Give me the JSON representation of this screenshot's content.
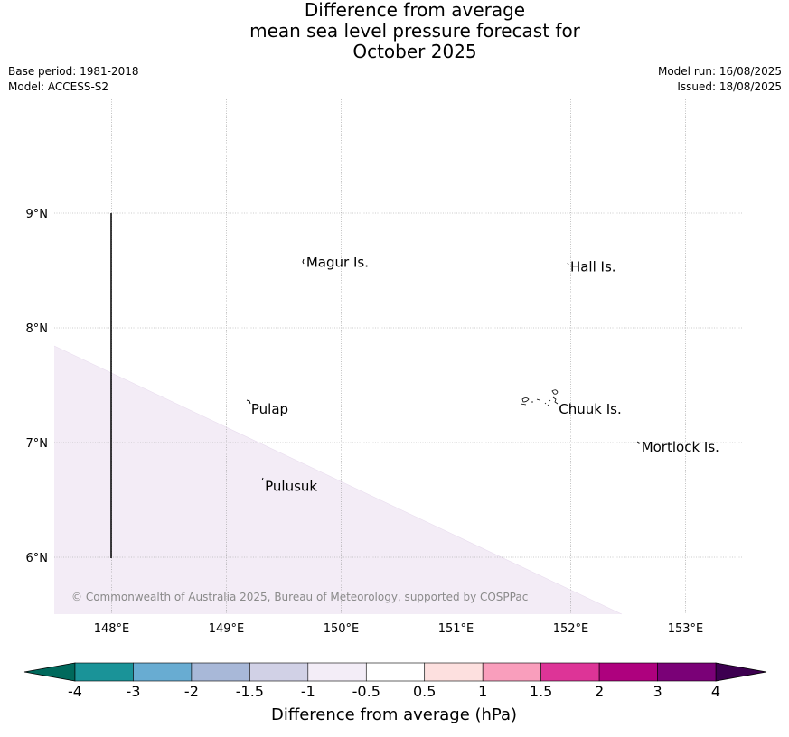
{
  "title": {
    "line1": "Difference from average",
    "line2": "mean sea level pressure forecast for",
    "line3": "October 2025"
  },
  "meta": {
    "base_period": "Base period: 1981-2018",
    "model": "Model: ACCESS-S2",
    "model_run": "Model run: 16/08/2025",
    "issued": "Issued: 18/08/2025"
  },
  "map": {
    "lon_ticks": [
      "148°E",
      "149°E",
      "150°E",
      "151°E",
      "152°E",
      "153°E"
    ],
    "lat_ticks": [
      "9°N",
      "8°N",
      "7°N",
      "6°N"
    ],
    "lon_values": [
      148,
      149,
      150,
      151,
      152,
      153
    ],
    "lat_values": [
      9,
      8,
      7,
      6
    ],
    "lon_range": [
      147.5,
      153.5
    ],
    "lat_range": [
      5.5,
      10.0
    ],
    "places": [
      {
        "name": "Magur Is.",
        "lon": 149.68,
        "lat": 8.57
      },
      {
        "name": "Hall Is.",
        "lon": 151.98,
        "lat": 8.53
      },
      {
        "name": "Pulap",
        "lon": 149.2,
        "lat": 7.29
      },
      {
        "name": "Chuuk Is.",
        "lon": 151.88,
        "lat": 7.29
      },
      {
        "name": "Mortlock Is.",
        "lon": 152.6,
        "lat": 6.96
      },
      {
        "name": "Pulusuk",
        "lon": 149.32,
        "lat": 6.62
      }
    ],
    "anomaly_region": {
      "category": "-1 to -0.5",
      "color": "#f3ecf6"
    },
    "grid_color": "#999999",
    "copyright": "© Commonwealth of Australia 2025, Bureau of Meteorology, supported by COSPPac"
  },
  "colorbar": {
    "label": "Difference from average (hPa)",
    "ticks": [
      "-4",
      "-3",
      "-2",
      "-1.5",
      "-1",
      "-0.5",
      "0.5",
      "1",
      "1.5",
      "2",
      "3",
      "4"
    ],
    "under_color": "#00695c",
    "over_color": "#3d0050",
    "colors": [
      "#1a9398",
      "#68acd2",
      "#a8b8d8",
      "#d1d1e6",
      "#f3edf7",
      "#ffffff",
      "#fde0df",
      "#f99ebc",
      "#dd3497",
      "#ae017e",
      "#7a0177"
    ]
  }
}
